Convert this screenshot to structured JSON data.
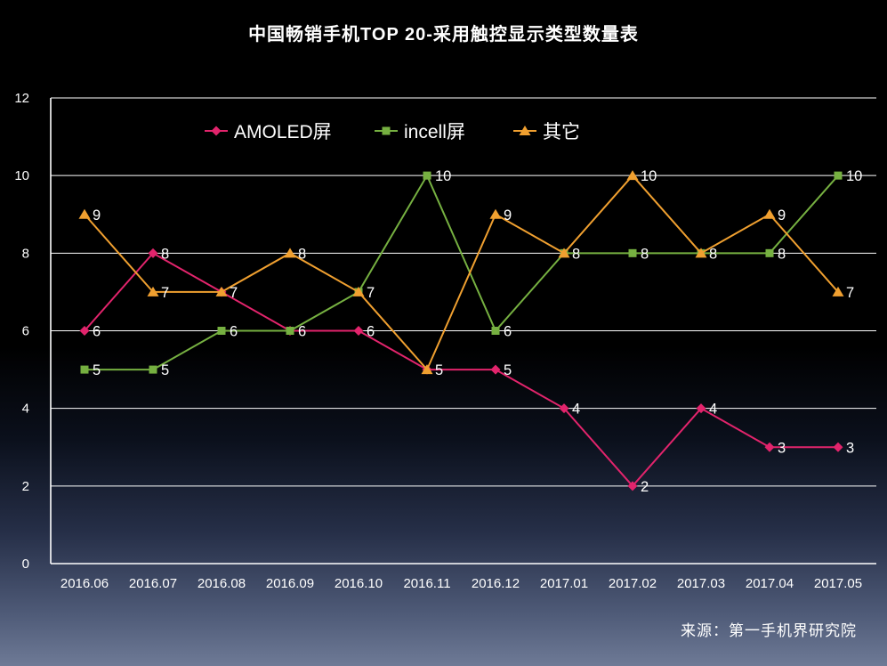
{
  "title": "中国畅销手机TOP 20-采用触控显示类型数量表",
  "source": "来源：第一手机界研究院",
  "colors": {
    "amoled": "#e2246c",
    "incell": "#76b041",
    "other": "#f0a030",
    "text": "#ffffff",
    "grid": "#ffffff"
  },
  "chart_data": {
    "type": "line",
    "title": "中国畅销手机TOP 20-采用触控显示类型数量表",
    "categories": [
      "2016.06",
      "2016.07",
      "2016.08",
      "2016.09",
      "2016.10",
      "2016.11",
      "2016.12",
      "2017.01",
      "2017.02",
      "2017.03",
      "2017.04",
      "2017.05"
    ],
    "series": [
      {
        "name": "AMOLED屏",
        "color": "#e2246c",
        "marker": "diamond",
        "values": [
          6,
          8,
          7,
          6,
          6,
          5,
          5,
          4,
          2,
          4,
          3,
          3
        ]
      },
      {
        "name": "incell屏",
        "color": "#76b041",
        "marker": "square",
        "values": [
          5,
          5,
          6,
          6,
          7,
          10,
          6,
          8,
          8,
          8,
          8,
          10
        ]
      },
      {
        "name": "其它",
        "color": "#f0a030",
        "marker": "triangle",
        "values": [
          9,
          7,
          7,
          8,
          7,
          5,
          9,
          8,
          10,
          8,
          9,
          7
        ]
      }
    ],
    "xlabel": "",
    "ylabel": "",
    "ylim": [
      0,
      12
    ],
    "yticks": [
      0,
      2,
      4,
      6,
      8,
      10,
      12
    ],
    "grid": true,
    "data_labels": true,
    "legend_position": "top-center"
  }
}
